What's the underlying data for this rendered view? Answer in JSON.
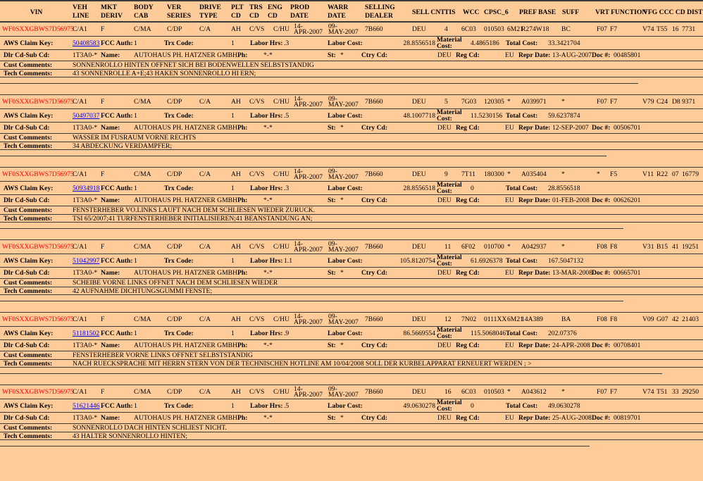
{
  "colors": {
    "background": "#FFCC99",
    "line": "#3B3B3B",
    "vin_text": "#FF0000",
    "link": "#0000EE",
    "text": "#000000"
  },
  "columns": {
    "vin": "VIN",
    "veh_line": "VEH\nLINE",
    "mkt_deriv": "MKT\nDERIV",
    "body_cab": "BODY\nCAB",
    "ver_series": "VER\nSERIES",
    "drive_type": "DRIVE\nTYPE",
    "plt_cd": "PLT\nCD",
    "trs_cd": "TRS\nCD",
    "eng_cd": "ENG\nCD",
    "prod_date": "PROD\nDATE",
    "warr_date": "WARR\nDATE",
    "selling_dealer": "SELLING\nDEALER",
    "sell_cnt": "SELL CNT",
    "tis": "TIS",
    "wcc": "WCC",
    "cpsc_6": "CPSC_6",
    "pref_base": "PREF BASE",
    "suff": "SUFF",
    "vrt_function": "VRT FUNCTION",
    "vfg_ccc_cd_dist": "VFG CCC CD DIST(M"
  },
  "labels": {
    "aws_claim_key": "AWS Claim Key:",
    "fcc_auth": "FCC Auth:",
    "trx_code": "Trx Code:",
    "labor_hrs": "Labor Hrs:",
    "labor_cost": "Labor Cost:",
    "material_cost": "Material Cost:",
    "total_cost": "Total Cost:",
    "dlr_cd_sub_cd": "Dlr Cd-Sub Cd:",
    "name": "Name:",
    "ph": "Ph:",
    "st": "St:",
    "ctry_cd": "Ctry Cd:",
    "reg_cd": "Reg Cd:",
    "repr_date": "Repr Date:",
    "doc": "Doc #:",
    "cust_comments": "Cust Comments:",
    "tech_comments": "Tech Comments:"
  },
  "records": [
    {
      "vin": "WF0SXXGBWS7D56975",
      "veh_line": "C/A1",
      "mkt_deriv": "F",
      "body_cab": "C/MA",
      "ver_series": "C/DP",
      "drive_type": "C/A",
      "plt_cd": "AH",
      "trs_cd": "C/VS",
      "eng_cd": "C/HU",
      "prod_date": "14-APR-2007",
      "warr_date": "09-MAY-2007",
      "selling_dealer": "7B660",
      "sell_cnt": "DEU",
      "tis": "4",
      "wcc": "6C03",
      "cpsc_6": "010503",
      "pref": "6M21",
      "base": "R274W18",
      "suff": "BC",
      "vrt": "F07",
      "function": "F7",
      "vfg": "V74",
      "ccc": "T55",
      "cd": "16",
      "dist": "7731",
      "claim_key": "50408583",
      "fcc_auth": "1",
      "trx_code": "1",
      "labor_hrs": ".3",
      "labor_cost": "28.8556518",
      "material_cost": "4.4865186",
      "total_cost": "33.3421704",
      "dlr_cd_sub_cd": "1T3A0-*",
      "name": "AUTOHAUS PH. HATZNER GMBH",
      "ph": "*-*",
      "st": "*",
      "ctry_cd": "DEU",
      "reg_cd": "EU",
      "repr_date": "13-AUG-2007",
      "doc_num": "00485801",
      "cust_comments": "SONNENROLLO HINTEN OFFNET SICH BEI BODENWELLEN SELBSTSTANDIG",
      "tech_comments": "43 SONNENROLLE A+E;43 HAKEN SONNENROLLO HI ERN;",
      "rule_w": 906
    },
    {
      "vin": "WF0SXXGBWS7D56975",
      "veh_line": "C/A1",
      "mkt_deriv": "F",
      "body_cab": "C/MA",
      "ver_series": "C/DP",
      "drive_type": "C/A",
      "plt_cd": "AH",
      "trs_cd": "C/VS",
      "eng_cd": "C/HU",
      "prod_date": "14-APR-2007",
      "warr_date": "09-MAY-2007",
      "selling_dealer": "7B660",
      "sell_cnt": "DEU",
      "tis": "5",
      "wcc": "7G03",
      "cpsc_6": "120305",
      "pref": "*",
      "base": "A039971",
      "suff": "*",
      "vrt": "F07",
      "function": "F7",
      "vfg": "V79",
      "ccc": "C24",
      "cd": "D8",
      "dist": "9371",
      "claim_key": "50497037",
      "fcc_auth": "1",
      "trx_code": "1",
      "labor_hrs": ".5",
      "labor_cost": "48.1007718",
      "material_cost": "11.5230156",
      "total_cost": "59.6237874",
      "dlr_cd_sub_cd": "1T3A0-*",
      "name": "AUTOHAUS PH. HATZNER GMBH",
      "ph": "*-*",
      "st": "*",
      "ctry_cd": "DEU",
      "reg_cd": "EU",
      "repr_date": "12-SEP-2007",
      "doc_num": "00506701",
      "cust_comments": "WASSER IM FUSRAUM VORNE RECHTS",
      "tech_comments": "34 ABDECKUNG VERDAMPFER;",
      "rule_w": 861
    },
    {
      "vin": "WF0SXXGBWS7D56975",
      "veh_line": "C/A1",
      "mkt_deriv": "F",
      "body_cab": "C/MA",
      "ver_series": "C/DP",
      "drive_type": "C/A",
      "plt_cd": "AH",
      "trs_cd": "C/VS",
      "eng_cd": "C/HU",
      "prod_date": "14-APR-2007",
      "warr_date": "09-MAY-2007",
      "selling_dealer": "7B660",
      "sell_cnt": "DEU",
      "tis": "9",
      "wcc": "7T11",
      "cpsc_6": "180300",
      "pref": "*",
      "base": "A035404",
      "suff": "*",
      "vrt": "*",
      "function": "F5",
      "vfg": "V11",
      "ccc": "R22",
      "cd": "07",
      "dist": "16779",
      "claim_key": "50934918",
      "fcc_auth": "1",
      "trx_code": "1",
      "labor_hrs": ".3",
      "labor_cost": "28.8556518",
      "material_cost": "0",
      "total_cost": "28.8556518",
      "dlr_cd_sub_cd": "1T3A0-*",
      "name": "AUTOHAUS PH. HATZNER GMBH",
      "ph": "*-*",
      "st": "*",
      "ctry_cd": "DEU",
      "reg_cd": "EU",
      "repr_date": "01-FEB-2008",
      "doc_num": "00626201",
      "cust_comments": "FENSTERHEBER VO.LINKS LAUFT NACH DEM SCHLIESEN WIEDER ZURUCK.",
      "tech_comments": "TSI 65/2007;41 TURFENSTERHEBER INITIALISIEREN;41 BEANSTANDUNG AN;",
      "rule_w": 885
    },
    {
      "vin": "WF0SXXGBWS7D56975",
      "veh_line": "C/A1",
      "mkt_deriv": "F",
      "body_cab": "C/MA",
      "ver_series": "C/DP",
      "drive_type": "C/A",
      "plt_cd": "AH",
      "trs_cd": "C/VS",
      "eng_cd": "C/HU",
      "prod_date": "14-APR-2007",
      "warr_date": "09-MAY-2007",
      "selling_dealer": "7B660",
      "sell_cnt": "DEU",
      "tis": "11",
      "wcc": "6F02",
      "cpsc_6": "010700",
      "pref": "*",
      "base": "A042937",
      "suff": "*",
      "vrt": "F08",
      "function": "F8",
      "vfg": "V31",
      "ccc": "B15",
      "cd": "41",
      "dist": "19251",
      "claim_key": "51042997",
      "fcc_auth": "1",
      "trx_code": "1",
      "labor_hrs": "1.1",
      "labor_cost": "105.8120754",
      "material_cost": "61.6926378",
      "total_cost": "167.5047132",
      "dlr_cd_sub_cd": "1T3A0-*",
      "name": "AUTOHAUS PH. HATZNER GMBH",
      "ph": "*-*",
      "st": "*",
      "ctry_cd": "DEU",
      "reg_cd": "EU",
      "repr_date": "13-MAR-2008",
      "doc_num": "00665701",
      "cust_comments": "SCHEIBE VORNE LINKS OFFNET NACH DEM SCHLIESEN WIEDER",
      "tech_comments": "42 AUFNAHME DICHTUNGSGUMMI FENSTE;",
      "rule_w": 885
    },
    {
      "vin": "WF0SXXGBWS7D56975",
      "veh_line": "C/A1",
      "mkt_deriv": "F",
      "body_cab": "C/MA",
      "ver_series": "C/DP",
      "drive_type": "C/A",
      "plt_cd": "AH",
      "trs_cd": "C/VS",
      "eng_cd": "C/HU",
      "prod_date": "14-APR-2007",
      "warr_date": "09-MAY-2007",
      "selling_dealer": "7B660",
      "sell_cnt": "DEU",
      "tis": "12",
      "wcc": "7N02",
      "cpsc_6": "0111XX",
      "pref": "6M21",
      "base": "14A389",
      "suff": "BA",
      "vrt": "F08",
      "function": "F8",
      "vfg": "V09",
      "ccc": "G07",
      "cd": "42",
      "dist": "21403",
      "claim_key": "51181502",
      "fcc_auth": "1",
      "trx_code": "1",
      "labor_hrs": ".9",
      "labor_cost": "86.5669554",
      "material_cost": "115.5068046",
      "total_cost": "202.07376",
      "dlr_cd_sub_cd": "1T3A0-*",
      "name": "AUTOHAUS PH. HATZNER GMBH",
      "ph": "*-*",
      "st": "*",
      "ctry_cd": "DEU",
      "reg_cd": "EU",
      "repr_date": "24-APR-2008",
      "doc_num": "00708401",
      "cust_comments": "FENSTERHEBER VORNE LINKS OFFNET SELBSTSTANDIG",
      "tech_comments": "NACH RUECKSPRACHE MIT HERRN STERN VON DER TECHNISCHEN HOTLINE AM 10/04/2008 SOLL DER KURBELAPPARAT ERNEUERT WERDEN ; >",
      "rule_w": 940
    },
    {
      "vin": "WF0SXXGBWS7D56975",
      "veh_line": "C/A1",
      "mkt_deriv": "F",
      "body_cab": "C/MA",
      "ver_series": "C/DP",
      "drive_type": "C/A",
      "plt_cd": "AH",
      "trs_cd": "C/VS",
      "eng_cd": "C/HU",
      "prod_date": "14-APR-2007",
      "warr_date": "09-MAY-2007",
      "selling_dealer": "7B660",
      "sell_cnt": "DEU",
      "tis": "16",
      "wcc": "6C03",
      "cpsc_6": "010503",
      "pref": "*",
      "base": "A043612",
      "suff": "*",
      "vrt": "F07",
      "function": "F7",
      "vfg": "V74",
      "ccc": "T51",
      "cd": "33",
      "dist": "29250",
      "claim_key": "51621446",
      "fcc_auth": "1",
      "trx_code": "1",
      "labor_hrs": ".5",
      "labor_cost": "49.0630278",
      "material_cost": "0",
      "total_cost": "49.0630278",
      "dlr_cd_sub_cd": "1T3A0-*",
      "name": "AUTOHAUS PH. HATZNER GMBH",
      "ph": "*-*",
      "st": "*",
      "ctry_cd": "DEU",
      "reg_cd": "EU",
      "repr_date": "25-AUG-2008",
      "doc_num": "00819701",
      "cust_comments": "SONNENROLLO DACH HINTEN SCHLIEST NICHT.",
      "tech_comments": "43 HALTER SONNENROLLO HINTEN;",
      "rule_w": 837
    }
  ]
}
